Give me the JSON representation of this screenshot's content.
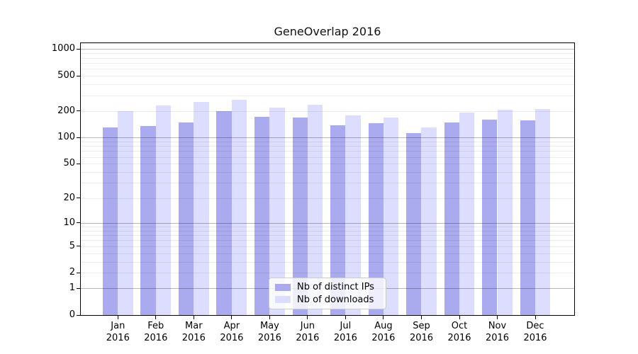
{
  "title": "GeneOverlap 2016",
  "chart_data": {
    "type": "bar",
    "title": "GeneOverlap 2016",
    "y_scale": "log10(1+y)",
    "grid": "horizontal, minor and major (darker at powers of 10)",
    "months": [
      "Jan",
      "Feb",
      "Mar",
      "Apr",
      "May",
      "Jun",
      "Jul",
      "Aug",
      "Sep",
      "Oct",
      "Nov",
      "Dec"
    ],
    "year": "2016",
    "categories": [
      "Jan 2016",
      "Feb 2016",
      "Mar 2016",
      "Apr 2016",
      "May 2016",
      "Jun 2016",
      "Jul 2016",
      "Aug 2016",
      "Sep 2016",
      "Oct 2016",
      "Nov 2016",
      "Dec 2016"
    ],
    "series": [
      {
        "name": "Nb of distinct IPs",
        "color": "#aaaaee",
        "values": [
          131,
          135,
          147,
          200,
          171,
          168,
          136,
          144,
          111,
          149,
          158,
          156
        ]
      },
      {
        "name": "Nb of downloads",
        "color": "#ddddff",
        "values": [
          200,
          230,
          251,
          268,
          219,
          233,
          179,
          168,
          131,
          190,
          206,
          209
        ]
      }
    ],
    "y_ticks": [
      0,
      1,
      2,
      5,
      10,
      20,
      50,
      100,
      200,
      500,
      1000
    ],
    "ylim": [
      0,
      1180
    ],
    "legend_position": "lower center"
  },
  "colors": {
    "distinct_ips": "#aaaaee",
    "downloads": "#ddddff",
    "spine": "#000000",
    "grid_minor": "rgba(0,0,0,0.075)",
    "grid_major": "rgba(0,0,0,0.28)",
    "legend_border": "#cccccc"
  }
}
